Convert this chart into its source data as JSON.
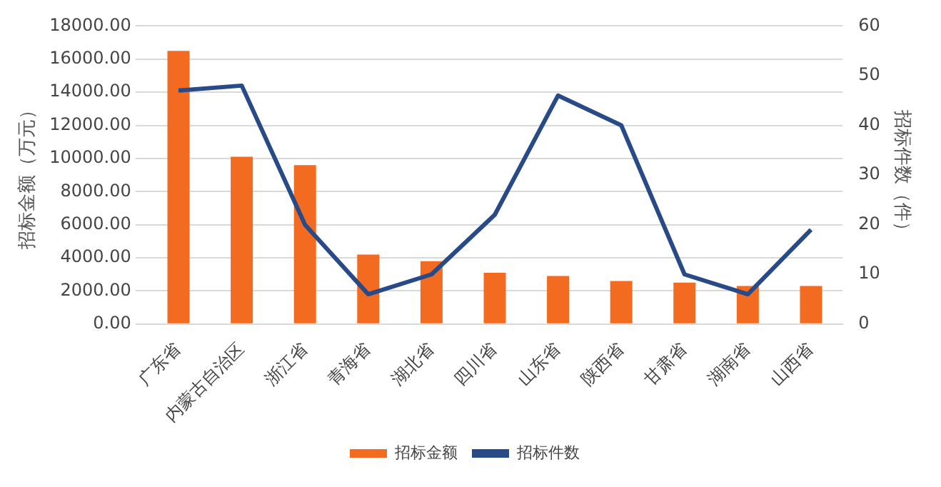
{
  "chart_data": {
    "type": "bar",
    "ylabel": "招标金额（万元）",
    "y2label": "招标件数（件）",
    "categories": [
      "广东省",
      "内蒙古自治区",
      "浙江省",
      "青海省",
      "湖北省",
      "四川省",
      "山东省",
      "陕西省",
      "甘肃省",
      "湖南省",
      "山西省"
    ],
    "series": [
      {
        "name": "招标金额",
        "color": "#f26b21",
        "values": [
          16500,
          10100,
          9600,
          4200,
          3800,
          3100,
          2900,
          2600,
          2500,
          2300,
          2300
        ]
      },
      {
        "name": "招标件数",
        "type": "line",
        "axis": "y2",
        "color": "#284a86",
        "values": [
          47,
          48,
          20,
          6,
          10,
          22,
          46,
          40,
          10,
          6,
          19
        ]
      }
    ],
    "ylim": [
      0,
      18000
    ],
    "yticks": [
      {
        "value": 0,
        "label": "0.00"
      },
      {
        "value": 2000,
        "label": "2000.00"
      },
      {
        "value": 4000,
        "label": "4000.00"
      },
      {
        "value": 6000,
        "label": "6000.00"
      },
      {
        "value": 8000,
        "label": "8000.00"
      },
      {
        "value": 10000,
        "label": "10000.00"
      },
      {
        "value": 12000,
        "label": "12000.00"
      },
      {
        "value": 14000,
        "label": "14000.00"
      },
      {
        "value": 16000,
        "label": "16000.00"
      },
      {
        "value": 18000,
        "label": "18000.00"
      }
    ],
    "y2lim": [
      0,
      60
    ],
    "y2ticks": [
      0,
      10,
      20,
      30,
      40,
      50,
      60
    ],
    "grid": "y",
    "legend": "bottom",
    "marker": "none"
  }
}
